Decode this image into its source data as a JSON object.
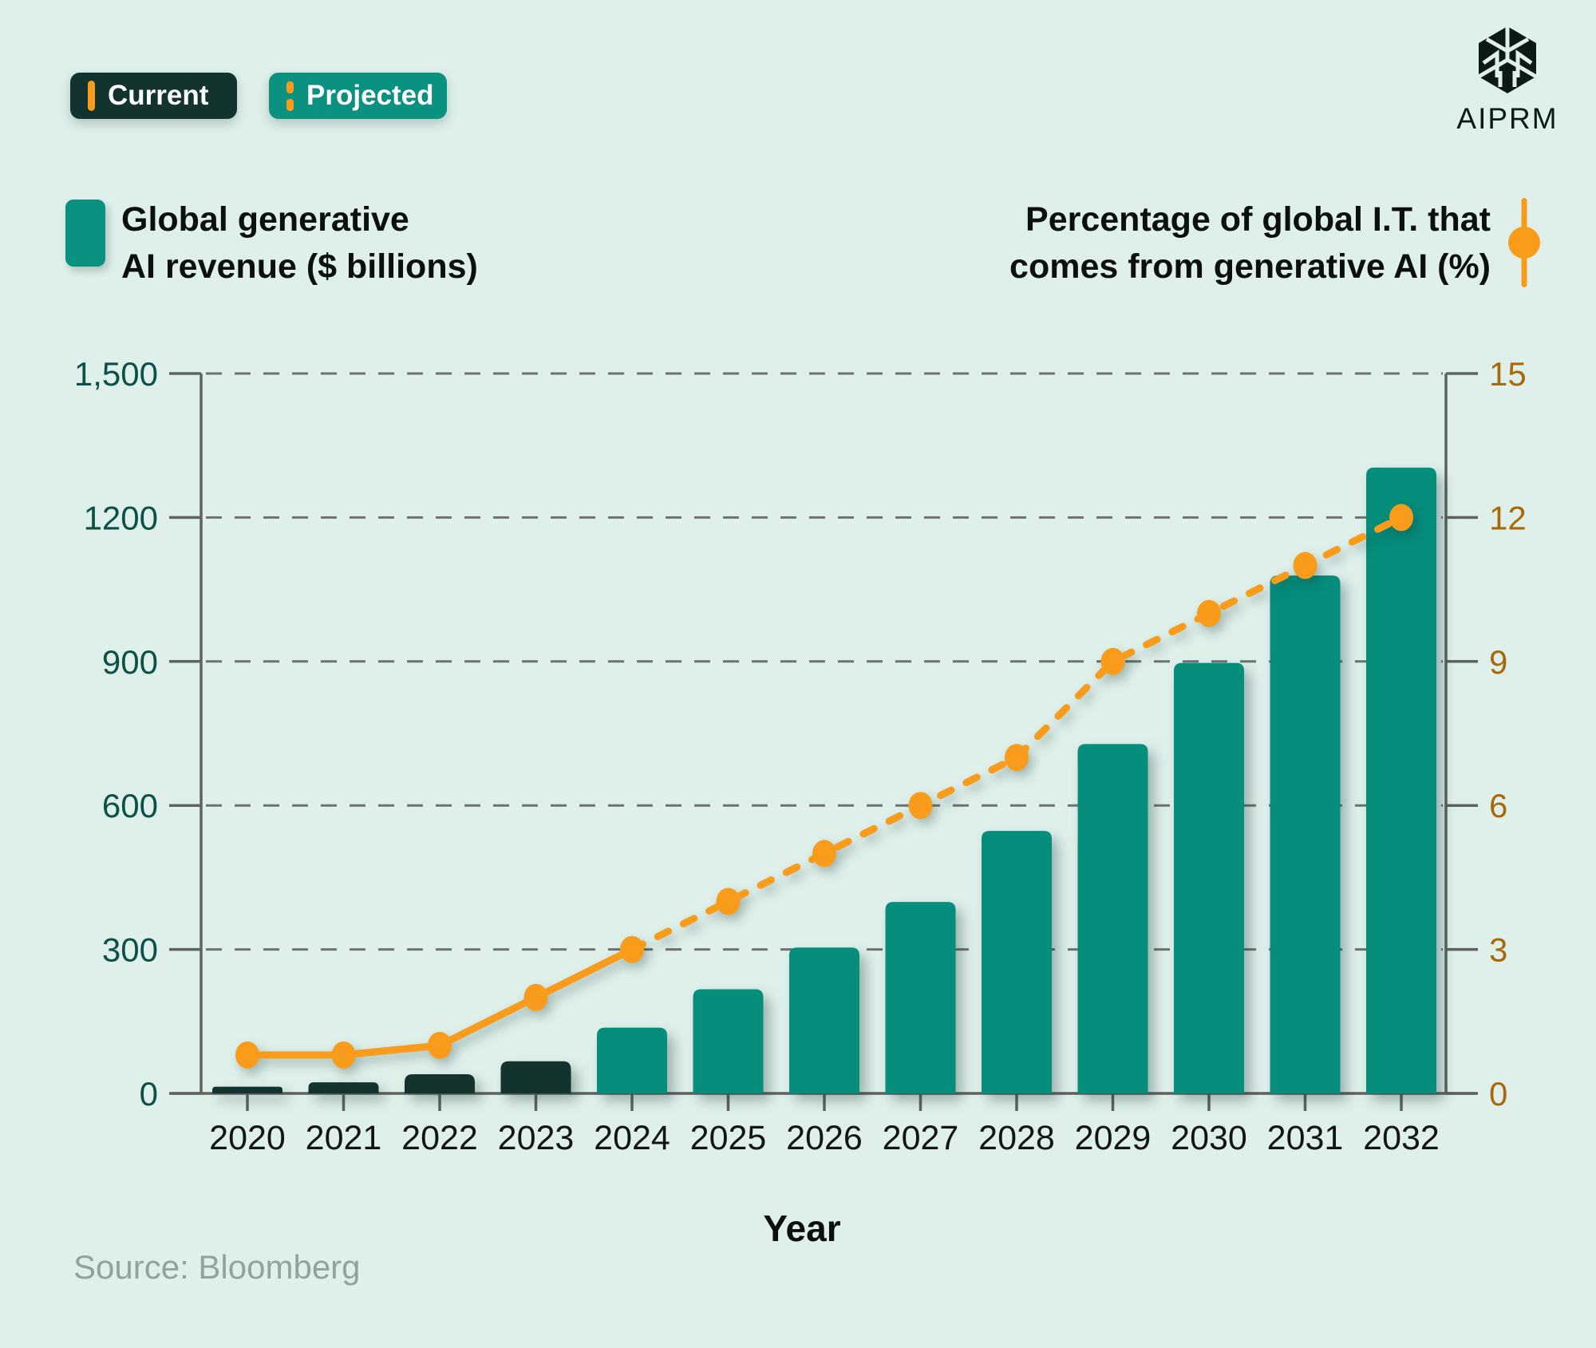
{
  "page": {
    "background": "#DFF0EB"
  },
  "header": {
    "chips": [
      {
        "label": "Current",
        "marker": "solid-orange-bar"
      },
      {
        "label": "Projected",
        "marker": "dashed-orange-bar"
      }
    ],
    "logo_text": "AIPRM"
  },
  "legend": {
    "revenue": {
      "line1": "Global generative",
      "line2": "AI revenue ($ billions)",
      "swatch_color": "#0A9180"
    },
    "percentage": {
      "line1": "Percentage of global I.T. that",
      "line2": "comes from generative AI (%)",
      "marker_color": "#F99C1B"
    }
  },
  "footer": {
    "xlabel": "Year",
    "source": "Source: Bloomberg"
  },
  "chart_data": {
    "type": "bar+line combo",
    "categories": [
      "2020",
      "2021",
      "2022",
      "2023",
      "2024",
      "2025",
      "2026",
      "2027",
      "2028",
      "2029",
      "2030",
      "2031",
      "2032"
    ],
    "series": [
      {
        "name": "Global generative AI revenue ($ billions)",
        "type": "bar",
        "axis": "left",
        "values": [
          14,
          23,
          40,
          67,
          137,
          217,
          304,
          399,
          547,
          728,
          897,
          1079,
          1304
        ],
        "current_years_end_index": 3,
        "color_current": "#12332E",
        "color_projected": "#068D7C"
      },
      {
        "name": "Percentage of global I.T. that comes from generative AI (%)",
        "type": "line",
        "axis": "right",
        "values": [
          0.8,
          0.8,
          1,
          2,
          3,
          4,
          5,
          6,
          7,
          9,
          10,
          11,
          12
        ],
        "solid_until_index": 4,
        "style_after_solid": "dashed",
        "color": "#F99C1B"
      }
    ],
    "left_axis": {
      "min": 0,
      "max": 1500,
      "tick_labels": [
        "0",
        "300",
        "600",
        "900",
        "1200",
        "1,500"
      ],
      "label_color": "#0B5147"
    },
    "right_axis": {
      "min": 0,
      "max": 15,
      "tick_labels": [
        "0",
        "3",
        "6",
        "9",
        "12",
        "15"
      ],
      "label_color": "#A8690A"
    },
    "xlabel": "Year",
    "grid": {
      "horizontal": "dashed",
      "color": "#6E7270"
    },
    "legend_position": "top"
  }
}
